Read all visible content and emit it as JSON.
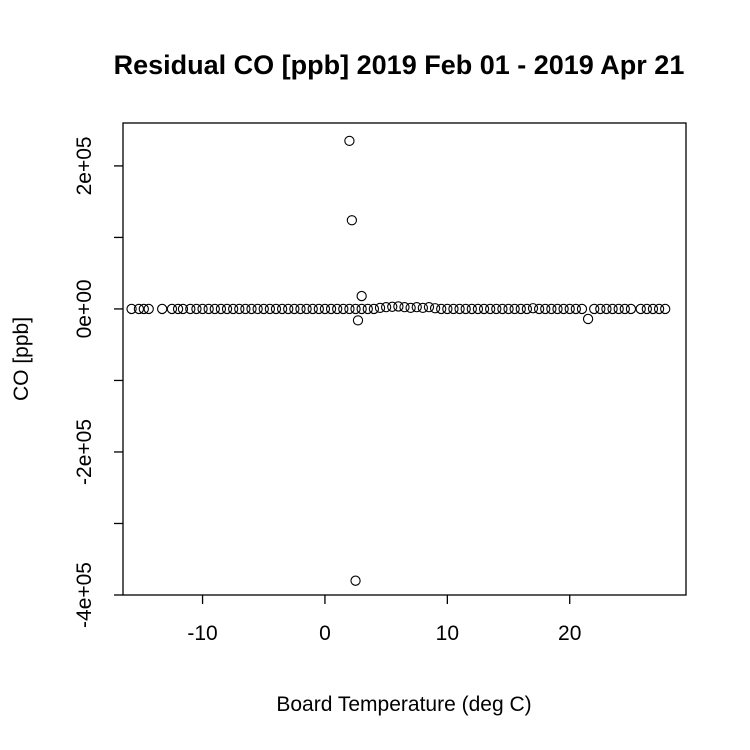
{
  "chart_data": {
    "type": "scatter",
    "title": "Residual CO [ppb] 2019 Feb 01 - 2019 Apr 21",
    "xlabel": "Board Temperature (deg C)",
    "ylabel": "CO [ppb]",
    "xlim": [
      -16.5,
      29.5
    ],
    "ylim": [
      -400000,
      260000
    ],
    "x_ticks": [
      -10,
      0,
      10,
      20
    ],
    "x_tick_labels": [
      "-10",
      "0",
      "10",
      "20"
    ],
    "y_ticks": [
      -400000,
      -300000,
      -200000,
      -100000,
      0,
      100000,
      200000
    ],
    "y_tick_labels": [
      "-4e+05",
      "",
      "-2e+05",
      "",
      "0e+00",
      "",
      "2e+05"
    ],
    "marker": "open-circle",
    "grid": false,
    "legend": "none",
    "points": [
      {
        "x": 2.0,
        "y": 235000
      },
      {
        "x": 2.2,
        "y": 124000
      },
      {
        "x": 3.0,
        "y": 18000
      },
      {
        "x": 2.7,
        "y": -16000
      },
      {
        "x": 21.5,
        "y": -14000
      },
      {
        "x": 2.5,
        "y": -380000
      },
      {
        "x": -15.8,
        "y": 0
      },
      {
        "x": -15.2,
        "y": 0
      },
      {
        "x": -14.8,
        "y": 0
      },
      {
        "x": -14.4,
        "y": 0
      },
      {
        "x": -13.3,
        "y": 0
      },
      {
        "x": -12.5,
        "y": 0
      },
      {
        "x": -12.0,
        "y": 0
      },
      {
        "x": -11.6,
        "y": 0
      },
      {
        "x": -11.0,
        "y": 0
      },
      {
        "x": -10.5,
        "y": 0
      },
      {
        "x": -10.0,
        "y": 0
      },
      {
        "x": -9.5,
        "y": 0
      },
      {
        "x": -9.0,
        "y": 0
      },
      {
        "x": -8.5,
        "y": 0
      },
      {
        "x": -8.0,
        "y": 0
      },
      {
        "x": -7.5,
        "y": 0
      },
      {
        "x": -7.0,
        "y": 0
      },
      {
        "x": -6.5,
        "y": 0
      },
      {
        "x": -6.0,
        "y": 0
      },
      {
        "x": -5.5,
        "y": 0
      },
      {
        "x": -5.0,
        "y": 0
      },
      {
        "x": -4.5,
        "y": 0
      },
      {
        "x": -4.0,
        "y": 0
      },
      {
        "x": -3.5,
        "y": 0
      },
      {
        "x": -3.0,
        "y": 0
      },
      {
        "x": -2.5,
        "y": 0
      },
      {
        "x": -2.0,
        "y": 0
      },
      {
        "x": -1.5,
        "y": 0
      },
      {
        "x": -1.0,
        "y": 0
      },
      {
        "x": -0.5,
        "y": 0
      },
      {
        "x": 0.0,
        "y": 0
      },
      {
        "x": 0.5,
        "y": 0
      },
      {
        "x": 1.0,
        "y": 0
      },
      {
        "x": 1.5,
        "y": 0
      },
      {
        "x": 2.0,
        "y": 0
      },
      {
        "x": 2.5,
        "y": 0
      },
      {
        "x": 3.0,
        "y": 0
      },
      {
        "x": 3.5,
        "y": 0
      },
      {
        "x": 4.0,
        "y": 0
      },
      {
        "x": 4.5,
        "y": 1500
      },
      {
        "x": 5.0,
        "y": 2500
      },
      {
        "x": 5.5,
        "y": 3000
      },
      {
        "x": 6.0,
        "y": 3500
      },
      {
        "x": 6.5,
        "y": 2500
      },
      {
        "x": 7.0,
        "y": 1500
      },
      {
        "x": 7.5,
        "y": 2500
      },
      {
        "x": 8.0,
        "y": 1500
      },
      {
        "x": 8.5,
        "y": 2500
      },
      {
        "x": 9.0,
        "y": 1000
      },
      {
        "x": 9.5,
        "y": 0
      },
      {
        "x": 10.0,
        "y": 0
      },
      {
        "x": 10.5,
        "y": 0
      },
      {
        "x": 11.0,
        "y": 0
      },
      {
        "x": 11.5,
        "y": 0
      },
      {
        "x": 12.0,
        "y": 0
      },
      {
        "x": 12.5,
        "y": 0
      },
      {
        "x": 13.0,
        "y": 0
      },
      {
        "x": 13.5,
        "y": 0
      },
      {
        "x": 14.0,
        "y": 0
      },
      {
        "x": 14.5,
        "y": 0
      },
      {
        "x": 15.0,
        "y": 0
      },
      {
        "x": 15.5,
        "y": 0
      },
      {
        "x": 16.0,
        "y": 0
      },
      {
        "x": 16.5,
        "y": 0
      },
      {
        "x": 17.0,
        "y": 1000
      },
      {
        "x": 17.5,
        "y": 0
      },
      {
        "x": 18.0,
        "y": 0
      },
      {
        "x": 18.5,
        "y": 0
      },
      {
        "x": 19.0,
        "y": 0
      },
      {
        "x": 19.5,
        "y": 0
      },
      {
        "x": 20.0,
        "y": 0
      },
      {
        "x": 20.5,
        "y": 0
      },
      {
        "x": 21.0,
        "y": 0
      },
      {
        "x": 22.0,
        "y": 0
      },
      {
        "x": 22.5,
        "y": 0
      },
      {
        "x": 23.0,
        "y": 0
      },
      {
        "x": 23.5,
        "y": 0
      },
      {
        "x": 24.0,
        "y": 0
      },
      {
        "x": 24.5,
        "y": 0
      },
      {
        "x": 25.0,
        "y": 0
      },
      {
        "x": 25.8,
        "y": 0
      },
      {
        "x": 26.3,
        "y": 0
      },
      {
        "x": 26.8,
        "y": 0
      },
      {
        "x": 27.3,
        "y": 0
      },
      {
        "x": 27.8,
        "y": 0
      }
    ]
  }
}
